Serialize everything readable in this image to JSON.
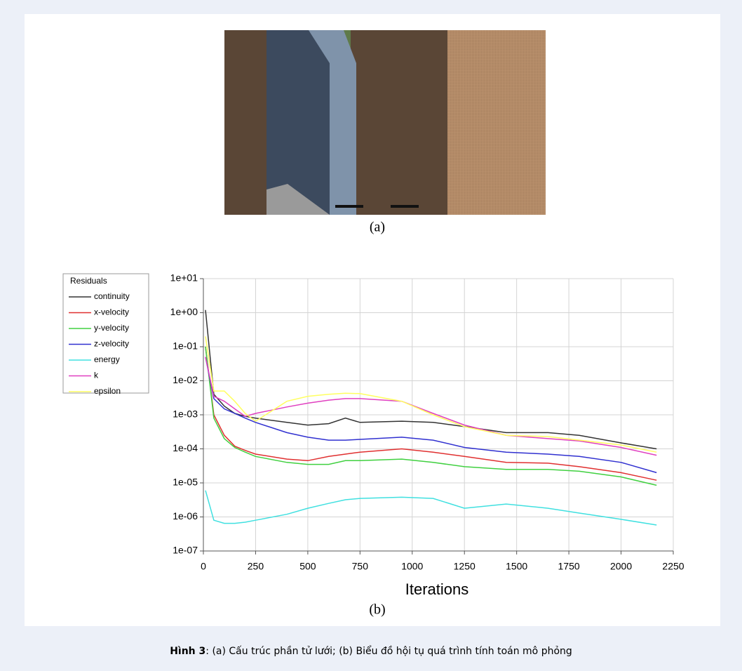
{
  "figure": {
    "label_a": "(a)",
    "label_b": "(b)",
    "caption_label": "Hình 3",
    "caption_text": ": (a) Cấu trúc phần tử lưới; (b) Biểu đồ hội tụ quá trình tính toán mô phỏng"
  },
  "chart_data": {
    "type": "line",
    "legend_title": "Residuals",
    "xlabel": "Iterations",
    "log_y": true,
    "grid": true,
    "legend": "left",
    "xlim": [
      0,
      2250
    ],
    "xticks": [
      0,
      250,
      500,
      750,
      1000,
      1250,
      1500,
      1750,
      2000,
      2250
    ],
    "ylim": [
      1e-07,
      10
    ],
    "yticks": [
      {
        "value": 1e-07,
        "label": "1e-07"
      },
      {
        "value": 1e-06,
        "label": "1e-06"
      },
      {
        "value": 1e-05,
        "label": "1e-05"
      },
      {
        "value": 0.0001,
        "label": "1e-04"
      },
      {
        "value": 0.001,
        "label": "1e-03"
      },
      {
        "value": 0.01,
        "label": "1e-02"
      },
      {
        "value": 0.1,
        "label": "1e-01"
      },
      {
        "value": 1,
        "label": "1e+00"
      },
      {
        "value": 10,
        "label": "1e+01"
      }
    ],
    "x": [
      10,
      50,
      100,
      150,
      200,
      250,
      400,
      500,
      600,
      680,
      750,
      950,
      1100,
      1250,
      1450,
      1650,
      1800,
      2000,
      2170
    ],
    "series": [
      {
        "name": "continuity",
        "color": "#333333",
        "values": [
          1.2,
          0.004,
          0.0018,
          0.0011,
          0.0009,
          0.0008,
          0.0006,
          0.0005,
          0.00055,
          0.0008,
          0.0006,
          0.00065,
          0.0006,
          0.00045,
          0.0003,
          0.0003,
          0.00025,
          0.00015,
          0.0001
        ]
      },
      {
        "name": "x-velocity",
        "color": "#e03030",
        "values": [
          0.1,
          0.001,
          0.00025,
          0.00012,
          9e-05,
          7e-05,
          5e-05,
          4.5e-05,
          6e-05,
          7e-05,
          8e-05,
          0.0001,
          8e-05,
          6e-05,
          4e-05,
          3.8e-05,
          3e-05,
          2e-05,
          1.2e-05
        ]
      },
      {
        "name": "y-velocity",
        "color": "#40d040",
        "values": [
          0.1,
          0.0008,
          0.0002,
          0.00011,
          8e-05,
          6e-05,
          4e-05,
          3.5e-05,
          3.5e-05,
          4.5e-05,
          4.5e-05,
          5e-05,
          4e-05,
          3e-05,
          2.5e-05,
          2.5e-05,
          2.2e-05,
          1.5e-05,
          8.5e-06
        ]
      },
      {
        "name": "z-velocity",
        "color": "#3030d0",
        "values": [
          0.05,
          0.003,
          0.0015,
          0.0011,
          0.0008,
          0.0006,
          0.0003,
          0.00022,
          0.00018,
          0.00018,
          0.00019,
          0.00022,
          0.00018,
          0.00011,
          8e-05,
          7e-05,
          6e-05,
          4e-05,
          2e-05
        ]
      },
      {
        "name": "energy",
        "color": "#40e0e0",
        "values": [
          6e-06,
          8e-07,
          6.5e-07,
          6.5e-07,
          7e-07,
          8e-07,
          1.2e-06,
          1.8e-06,
          2.5e-06,
          3.2e-06,
          3.5e-06,
          3.8e-06,
          3.5e-06,
          1.8e-06,
          2.4e-06,
          1.8e-06,
          1.3e-06,
          8.5e-07,
          5.8e-07
        ]
      },
      {
        "name": "k",
        "color": "#e040c0",
        "values": [
          0.05,
          0.0035,
          0.0025,
          0.0015,
          0.0009,
          0.0011,
          0.0017,
          0.0022,
          0.0027,
          0.003,
          0.003,
          0.0025,
          0.0011,
          0.0005,
          0.00025,
          0.0002,
          0.00017,
          0.00011,
          6.5e-05
        ]
      },
      {
        "name": "epsilon",
        "color": "#ffff60",
        "values": [
          0.2,
          0.005,
          0.005,
          0.0025,
          0.0011,
          0.00065,
          0.0025,
          0.0035,
          0.004,
          0.0043,
          0.0042,
          0.0025,
          0.001,
          0.00045,
          0.00025,
          0.00023,
          0.00018,
          0.00013,
          8e-05
        ]
      }
    ]
  }
}
